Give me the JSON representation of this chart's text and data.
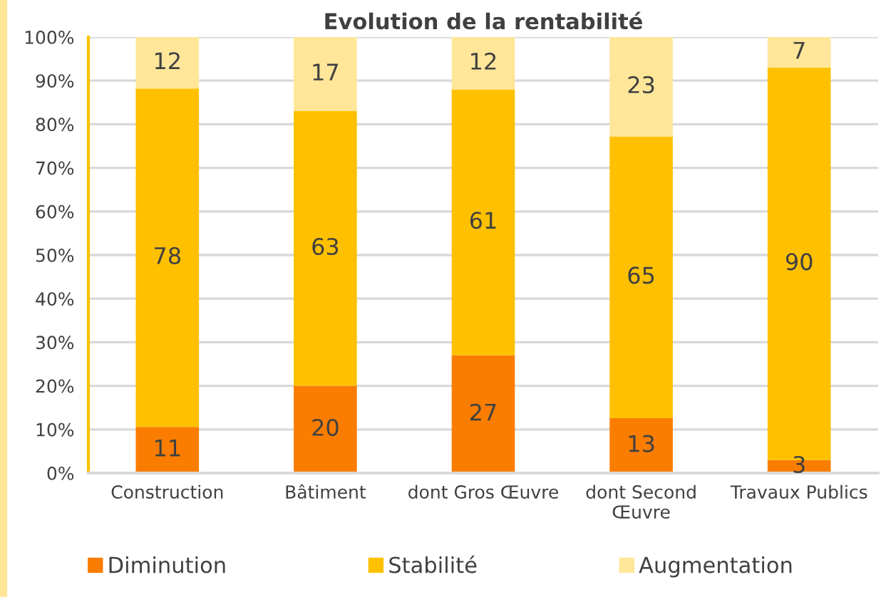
{
  "chart_data": {
    "type": "bar",
    "stacked": true,
    "title": "Evolution de la rentabilité",
    "categories": [
      "Construction",
      "Bâtiment",
      "dont Gros Œuvre",
      "dont Second Œuvre",
      "Travaux Publics"
    ],
    "series": [
      {
        "name": "Diminution",
        "color": "#fa7d00",
        "values": [
          10.6,
          20,
          27,
          12.6,
          3
        ],
        "value_labels": [
          "11",
          "20",
          "27",
          "13",
          "3"
        ]
      },
      {
        "name": "Stabilité",
        "color": "#ffc000",
        "values": [
          77.6,
          63,
          61,
          64.6,
          90
        ],
        "value_labels": [
          "78",
          "63",
          "61",
          "65",
          "90"
        ]
      },
      {
        "name": "Augmentation",
        "color": "#ffe699",
        "values": [
          11.8,
          17,
          12,
          22.8,
          7
        ],
        "value_labels": [
          "12",
          "17",
          "12",
          "23",
          "7"
        ]
      }
    ],
    "ylim": [
      0,
      100
    ],
    "yticks": [
      {
        "value": 0,
        "label": "0%"
      },
      {
        "value": 10,
        "label": "10%"
      },
      {
        "value": 20,
        "label": "20%"
      },
      {
        "value": 30,
        "label": "30%"
      },
      {
        "value": 40,
        "label": "40%"
      },
      {
        "value": 50,
        "label": "50%"
      },
      {
        "value": 60,
        "label": "60%"
      },
      {
        "value": 70,
        "label": "70%"
      },
      {
        "value": 80,
        "label": "80%"
      },
      {
        "value": 90,
        "label": "90%"
      },
      {
        "value": 100,
        "label": "100%"
      }
    ],
    "grid": "y",
    "legend": "bottom"
  }
}
